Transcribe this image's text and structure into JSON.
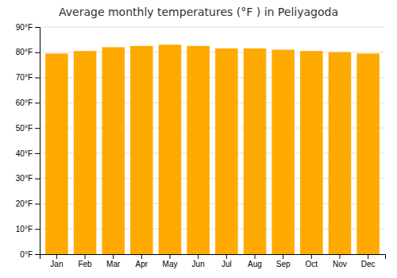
{
  "chart_data": {
    "type": "bar",
    "title": "Average monthly temperatures (°F ) in Peliyagoda",
    "categories": [
      "Jan",
      "Feb",
      "Mar",
      "Apr",
      "May",
      "Jun",
      "Jul",
      "Aug",
      "Sep",
      "Oct",
      "Nov",
      "Dec"
    ],
    "values": [
      79.5,
      80.5,
      82.0,
      82.5,
      83.0,
      82.5,
      81.5,
      81.5,
      81.0,
      80.5,
      80.0,
      79.5
    ],
    "color": "#FFAA00",
    "ylim": [
      0,
      90
    ],
    "yticks": [
      {
        "value": 0,
        "label": "0°F"
      },
      {
        "value": 10,
        "label": "10°F"
      },
      {
        "value": 20,
        "label": "20°F"
      },
      {
        "value": 30,
        "label": "30°F"
      },
      {
        "value": 40,
        "label": "40°F"
      },
      {
        "value": 50,
        "label": "50°F"
      },
      {
        "value": 60,
        "label": "60°F"
      },
      {
        "value": 70,
        "label": "70°F"
      },
      {
        "value": 80,
        "label": "80°F"
      },
      {
        "value": 90,
        "label": "90°F"
      }
    ],
    "grid": true
  }
}
